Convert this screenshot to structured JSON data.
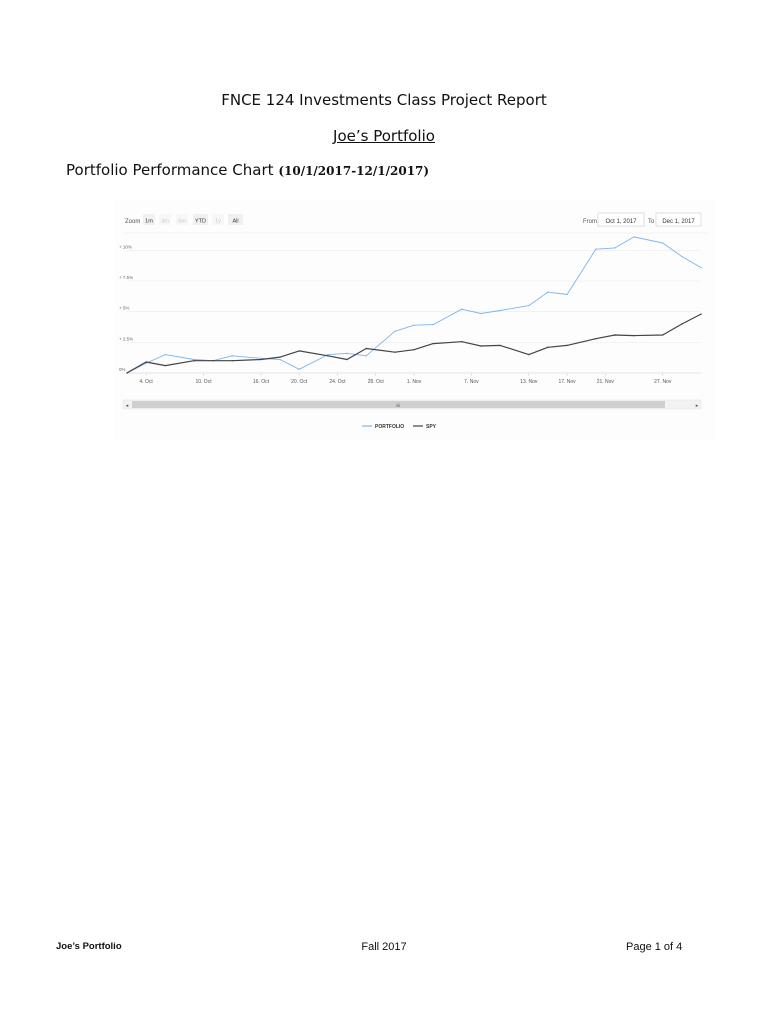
{
  "document": {
    "title": "FNCE 124 Investments Class Project Report",
    "subtitle": "Joe’s Portfolio",
    "section_heading": "Portfolio Performance Chart",
    "section_range": "(10/1/2017-12/1/2017)"
  },
  "chart_controls": {
    "zoom_label": "Zoom",
    "zoom_buttons": [
      "1m",
      "3m",
      "6m",
      "YTD",
      "1y",
      "All"
    ],
    "zoom_disabled": [
      false,
      true,
      true,
      false,
      true,
      false
    ],
    "from_label": "From",
    "from_value": "Oct 1, 2017",
    "to_label": "To",
    "to_value": "Dec 1, 2017"
  },
  "chart_data": {
    "type": "line",
    "title": "",
    "xlabel": "",
    "ylabel": "",
    "ylim": [
      0,
      11.5
    ],
    "y_ticks": [
      0,
      2.5,
      5,
      7.5,
      10
    ],
    "y_tick_labels": [
      "0%",
      "+ 2.5%",
      "+ 5%",
      "+ 7.5%",
      "+ 10%"
    ],
    "x_tick_labels": [
      "4. Oct",
      "10. Oct",
      "16. Oct",
      "20. Oct",
      "24. Oct",
      "28. Oct",
      "1. Nov",
      "7. Nov",
      "13. Nov",
      "17. Nov",
      "21. Nov",
      "27. Nov"
    ],
    "x_tick_dates": [
      "2017-10-04",
      "2017-10-10",
      "2017-10-16",
      "2017-10-20",
      "2017-10-24",
      "2017-10-28",
      "2017-11-01",
      "2017-11-07",
      "2017-11-13",
      "2017-11-17",
      "2017-11-21",
      "2017-11-27"
    ],
    "x_range": [
      "2017-10-02",
      "2017-12-01"
    ],
    "grid": true,
    "legend_position": "bottom-center",
    "series": [
      {
        "name": "PORTFOLIO",
        "color": "#7cb5ec",
        "points": [
          [
            "2017-10-02",
            0.0
          ],
          [
            "2017-10-04",
            0.8
          ],
          [
            "2017-10-06",
            1.5
          ],
          [
            "2017-10-09",
            1.1
          ],
          [
            "2017-10-11",
            1.0
          ],
          [
            "2017-10-13",
            1.4
          ],
          [
            "2017-10-16",
            1.2
          ],
          [
            "2017-10-18",
            1.1
          ],
          [
            "2017-10-20",
            0.3
          ],
          [
            "2017-10-23",
            1.5
          ],
          [
            "2017-10-25",
            1.6
          ],
          [
            "2017-10-27",
            1.4
          ],
          [
            "2017-10-30",
            3.4
          ],
          [
            "2017-11-01",
            3.9
          ],
          [
            "2017-11-03",
            3.95
          ],
          [
            "2017-11-06",
            5.2
          ],
          [
            "2017-11-08",
            4.85
          ],
          [
            "2017-11-10",
            5.1
          ],
          [
            "2017-11-13",
            5.5
          ],
          [
            "2017-11-15",
            6.6
          ],
          [
            "2017-11-17",
            6.4
          ],
          [
            "2017-11-20",
            10.1
          ],
          [
            "2017-11-22",
            10.2
          ],
          [
            "2017-11-24",
            11.1
          ],
          [
            "2017-11-27",
            10.6
          ],
          [
            "2017-11-29",
            9.5
          ],
          [
            "2017-12-01",
            8.6
          ]
        ]
      },
      {
        "name": "SPY",
        "color": "#434348",
        "points": [
          [
            "2017-10-02",
            0.0
          ],
          [
            "2017-10-04",
            0.9
          ],
          [
            "2017-10-06",
            0.6
          ],
          [
            "2017-10-09",
            1.0
          ],
          [
            "2017-10-11",
            1.0
          ],
          [
            "2017-10-13",
            1.0
          ],
          [
            "2017-10-16",
            1.1
          ],
          [
            "2017-10-18",
            1.3
          ],
          [
            "2017-10-20",
            1.8
          ],
          [
            "2017-10-23",
            1.4
          ],
          [
            "2017-10-25",
            1.1
          ],
          [
            "2017-10-27",
            2.0
          ],
          [
            "2017-10-30",
            1.7
          ],
          [
            "2017-11-01",
            1.9
          ],
          [
            "2017-11-03",
            2.4
          ],
          [
            "2017-11-06",
            2.55
          ],
          [
            "2017-11-08",
            2.2
          ],
          [
            "2017-11-10",
            2.25
          ],
          [
            "2017-11-13",
            1.5
          ],
          [
            "2017-11-15",
            2.1
          ],
          [
            "2017-11-17",
            2.25
          ],
          [
            "2017-11-20",
            2.8
          ],
          [
            "2017-11-22",
            3.1
          ],
          [
            "2017-11-24",
            3.05
          ],
          [
            "2017-11-27",
            3.1
          ],
          [
            "2017-11-29",
            4.0
          ],
          [
            "2017-12-01",
            4.8
          ]
        ]
      }
    ]
  },
  "footer": {
    "left": "Joe’s Portfolio",
    "center": "Fall 2017",
    "right": "Page 1 of 4"
  }
}
